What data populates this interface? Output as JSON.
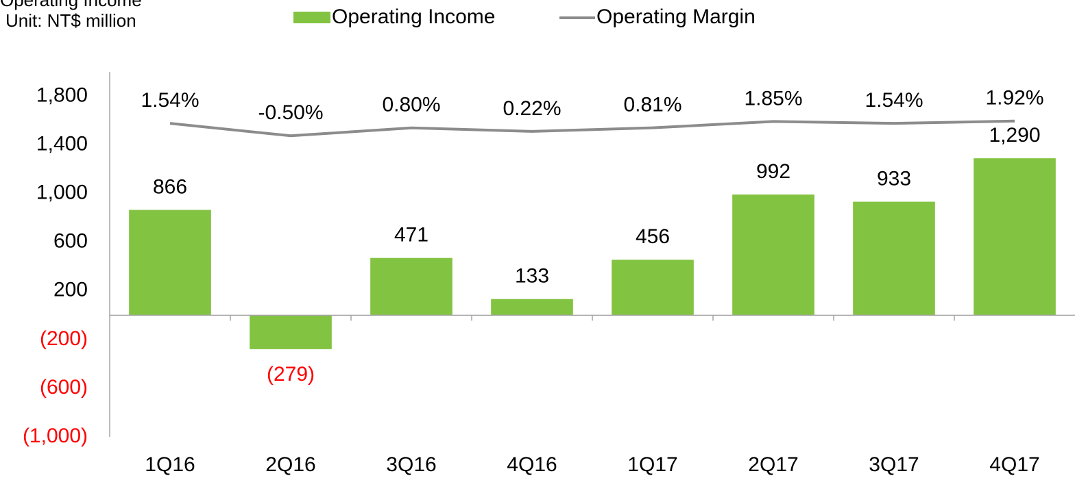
{
  "chart_data": {
    "type": "bar",
    "title": "Operating Income",
    "subtitle": "Unit: NT$ million",
    "categories": [
      "1Q16",
      "2Q16",
      "3Q16",
      "4Q16",
      "1Q17",
      "2Q17",
      "3Q17",
      "4Q17"
    ],
    "series": [
      {
        "name": "Operating Income",
        "type": "bar",
        "color": "#82c341",
        "values": [
          866,
          -279,
          471,
          133,
          456,
          992,
          933,
          1290
        ],
        "value_labels": [
          "866",
          "(279)",
          "471",
          "133",
          "456",
          "992",
          "933",
          "1,290"
        ]
      },
      {
        "name": "Operating Margin",
        "type": "line",
        "axis": "y2",
        "color": "#8c8c8c",
        "values": [
          1.54,
          -0.5,
          0.8,
          0.22,
          0.81,
          1.85,
          1.54,
          1.92
        ],
        "value_labels": [
          "1.54%",
          "-0.50%",
          "0.80%",
          "0.22%",
          "0.81%",
          "1.85%",
          "1.54%",
          "1.92%"
        ]
      }
    ],
    "ylim": [
      -1000,
      2000
    ],
    "yticks": [
      {
        "value": -1000,
        "label": "(1,000)"
      },
      {
        "value": -600,
        "label": "(600)"
      },
      {
        "value": -200,
        "label": "(200)"
      },
      200,
      600,
      {
        "value": 1000,
        "label": "1,000"
      },
      {
        "value": 1400,
        "label": "1,400"
      },
      {
        "value": 1800,
        "label": "1,800"
      }
    ],
    "y2lim": [
      -50,
      10
    ],
    "negative_color": "#ff0000"
  }
}
